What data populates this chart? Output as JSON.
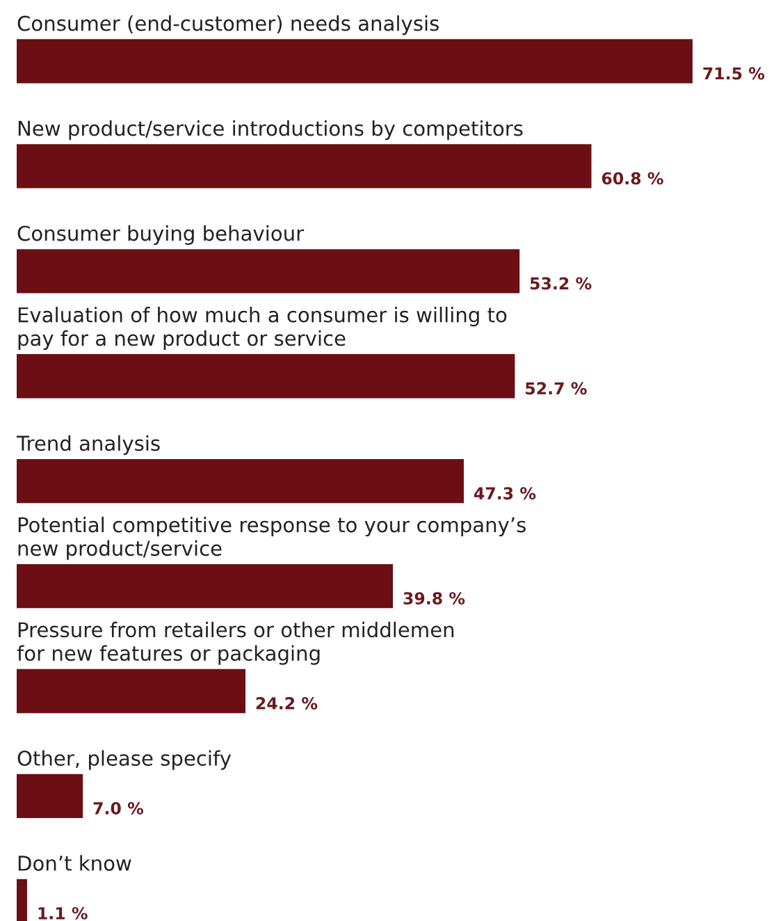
{
  "chart_data": {
    "type": "bar",
    "orientation": "horizontal",
    "categories": [
      "Consumer (end-customer) needs analysis",
      "New product/service introductions by competitors",
      "Consumer buying behaviour",
      "Evaluation of how much a consumer is willing to\npay for a new product or service",
      "Trend analysis",
      "Potential competitive response to your company’s\nnew product/service",
      "Pressure from retailers or other middlemen\nfor new features or packaging",
      "Other, please specify",
      "Don’t know"
    ],
    "series": [
      {
        "color": "#6b0f15",
        "values": [
          71.5,
          60.8,
          53.2,
          52.7,
          47.3,
          39.8,
          24.2,
          7.0,
          1.1
        ],
        "value_labels": [
          "71.5 %",
          "60.8 %",
          "53.2 %",
          "52.7 %",
          "47.3 %",
          "39.8 %",
          "24.2 %",
          "7.0 %",
          "1.1 %"
        ]
      }
    ],
    "legend": false
  }
}
